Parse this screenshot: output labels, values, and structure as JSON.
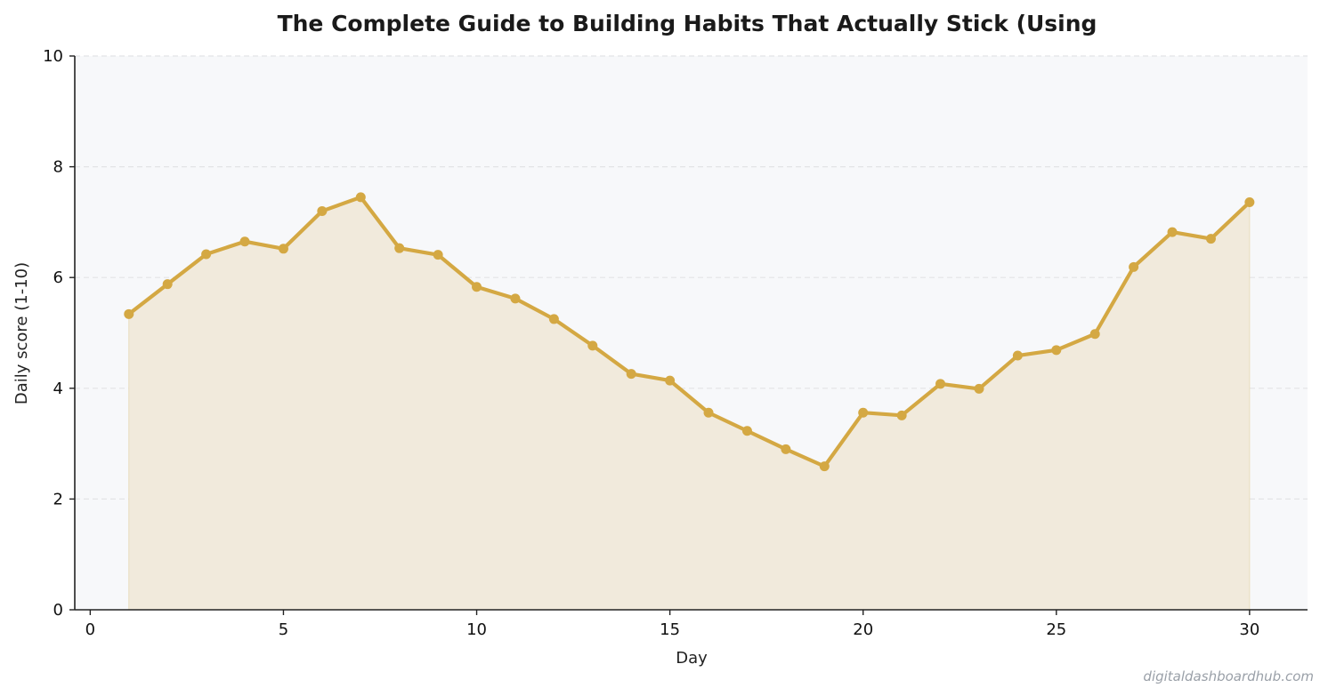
{
  "chart_data": {
    "type": "line",
    "title": "The Complete Guide to Building Habits That Actually Stick (Using",
    "xlabel": "Day",
    "ylabel": "Daily score (1-10)",
    "xlim": [
      -0.4,
      31.5
    ],
    "ylim": [
      0,
      10
    ],
    "xticks": [
      0,
      5,
      10,
      15,
      20,
      25,
      30
    ],
    "yticks": [
      0,
      2,
      4,
      6,
      8,
      10
    ],
    "grid": "y-dashed",
    "area_fill": true,
    "series": [
      {
        "x": [
          1,
          2,
          3,
          4,
          5,
          6,
          7,
          8,
          9,
          10,
          11,
          12,
          13,
          14,
          15,
          16,
          17,
          18,
          19,
          20,
          21,
          22,
          23,
          24,
          25,
          26,
          27,
          28,
          29,
          30
        ],
        "values": [
          5.34,
          5.88,
          6.42,
          6.65,
          6.52,
          7.2,
          7.45,
          6.53,
          6.41,
          5.83,
          5.62,
          5.25,
          4.77,
          4.26,
          4.14,
          3.56,
          3.23,
          2.9,
          2.59,
          3.56,
          3.51,
          4.08,
          3.99,
          4.59,
          4.69,
          4.98,
          6.19,
          6.82,
          6.7,
          7.36
        ]
      }
    ],
    "colors": {
      "line": "#D4A843",
      "fill": "#F1EADC",
      "plot_bg": "#F7F8FA",
      "grid": "#E3E4E6",
      "axis": "#222222"
    }
  },
  "watermark": "digitaldashboardhub.com"
}
